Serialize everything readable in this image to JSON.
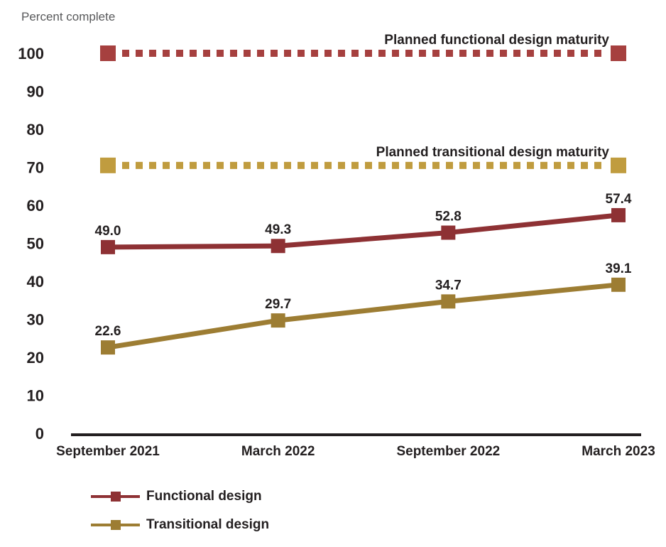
{
  "chart_data": {
    "type": "line",
    "title": "",
    "ylabel": "Percent complete",
    "xlabel": "",
    "categories": [
      "September 2021",
      "March 2022",
      "September 2022",
      "March 2023"
    ],
    "y_ticks": [
      0,
      10,
      20,
      30,
      40,
      50,
      60,
      70,
      80,
      90,
      100
    ],
    "ylim": [
      0,
      100
    ],
    "grid": false,
    "legend_position": "bottom-left",
    "series": [
      {
        "name": "Functional design",
        "values": [
          49.0,
          49.3,
          52.8,
          57.4
        ],
        "labels": [
          "49.0",
          "49.3",
          "52.8",
          "57.4"
        ],
        "color": "#8E3134",
        "style": "solid-square-markers"
      },
      {
        "name": "Transitional design",
        "values": [
          22.6,
          29.7,
          34.7,
          39.1
        ],
        "labels": [
          "22.6",
          "29.7",
          "34.7",
          "39.1"
        ],
        "color": "#9D7D33",
        "style": "solid-square-markers"
      }
    ],
    "reference_lines": [
      {
        "label": "Planned functional design maturity",
        "value": 100,
        "color": "#A6403F",
        "style": "dashed-square-end-markers"
      },
      {
        "label": "Planned transitional design maturity",
        "value": 70.5,
        "color": "#C09C3F",
        "style": "dashed-square-end-markers"
      }
    ],
    "legend": [
      {
        "label": "Functional design",
        "color": "#8E3134"
      },
      {
        "label": "Transitional design",
        "color": "#9D7D33"
      }
    ],
    "colors": {
      "axis_line": "#231F20",
      "tick_text": "#231F20",
      "data_label_text": "#231F20",
      "y_axis_title_text": "#58595B",
      "background": "#FFFFFF"
    }
  }
}
